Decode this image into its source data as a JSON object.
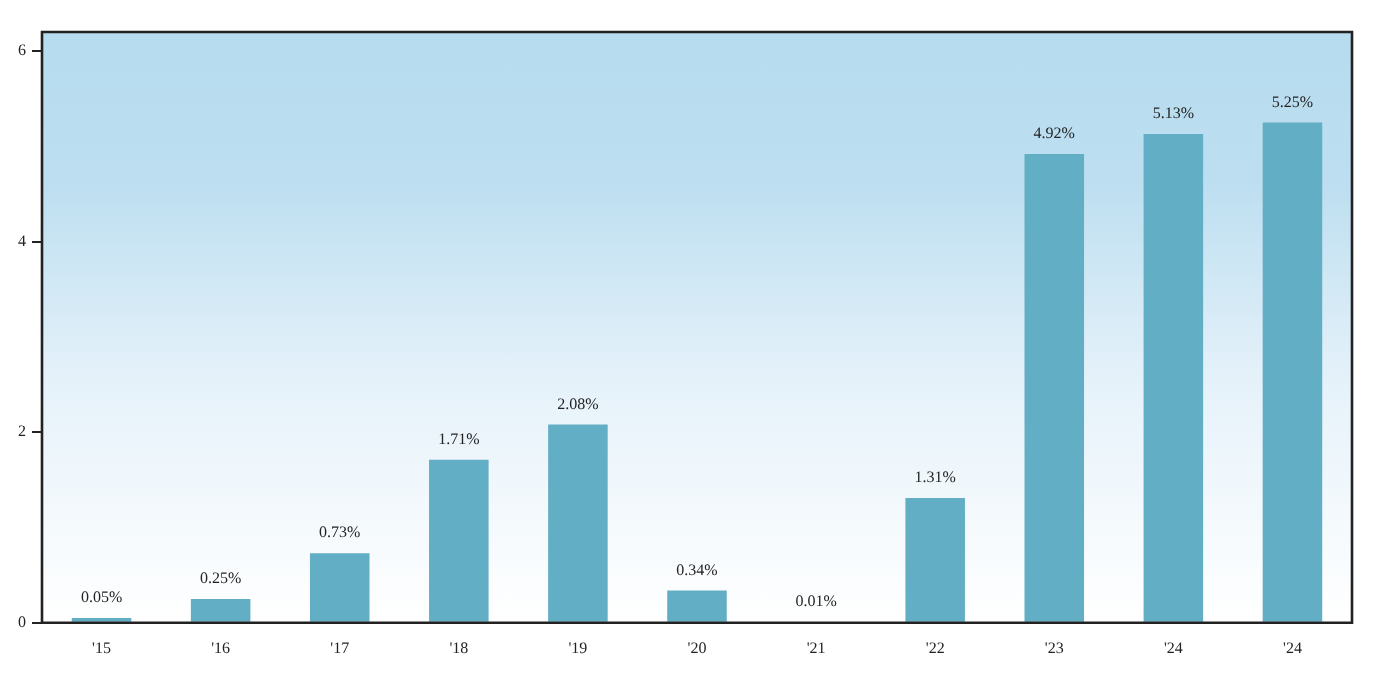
{
  "chart_data": {
    "type": "bar",
    "categories": [
      "'15",
      "'16",
      "'17",
      "'18",
      "'19",
      "'20",
      "'21",
      "'22",
      "'23",
      "'24",
      "'24"
    ],
    "values": [
      0.05,
      0.25,
      0.73,
      1.71,
      2.08,
      0.34,
      0.01,
      1.31,
      4.92,
      5.13,
      5.25
    ],
    "value_labels": [
      "0.05%",
      "0.25%",
      "0.73%",
      "1.71%",
      "2.08%",
      "0.34%",
      "0.01%",
      "1.31%",
      "4.92%",
      "5.13%",
      "5.25%"
    ],
    "color": "#62aec4",
    "ylim": [
      0,
      6.2
    ],
    "yticks": [
      0,
      2,
      4,
      6
    ],
    "grid": false,
    "legend": false
  }
}
